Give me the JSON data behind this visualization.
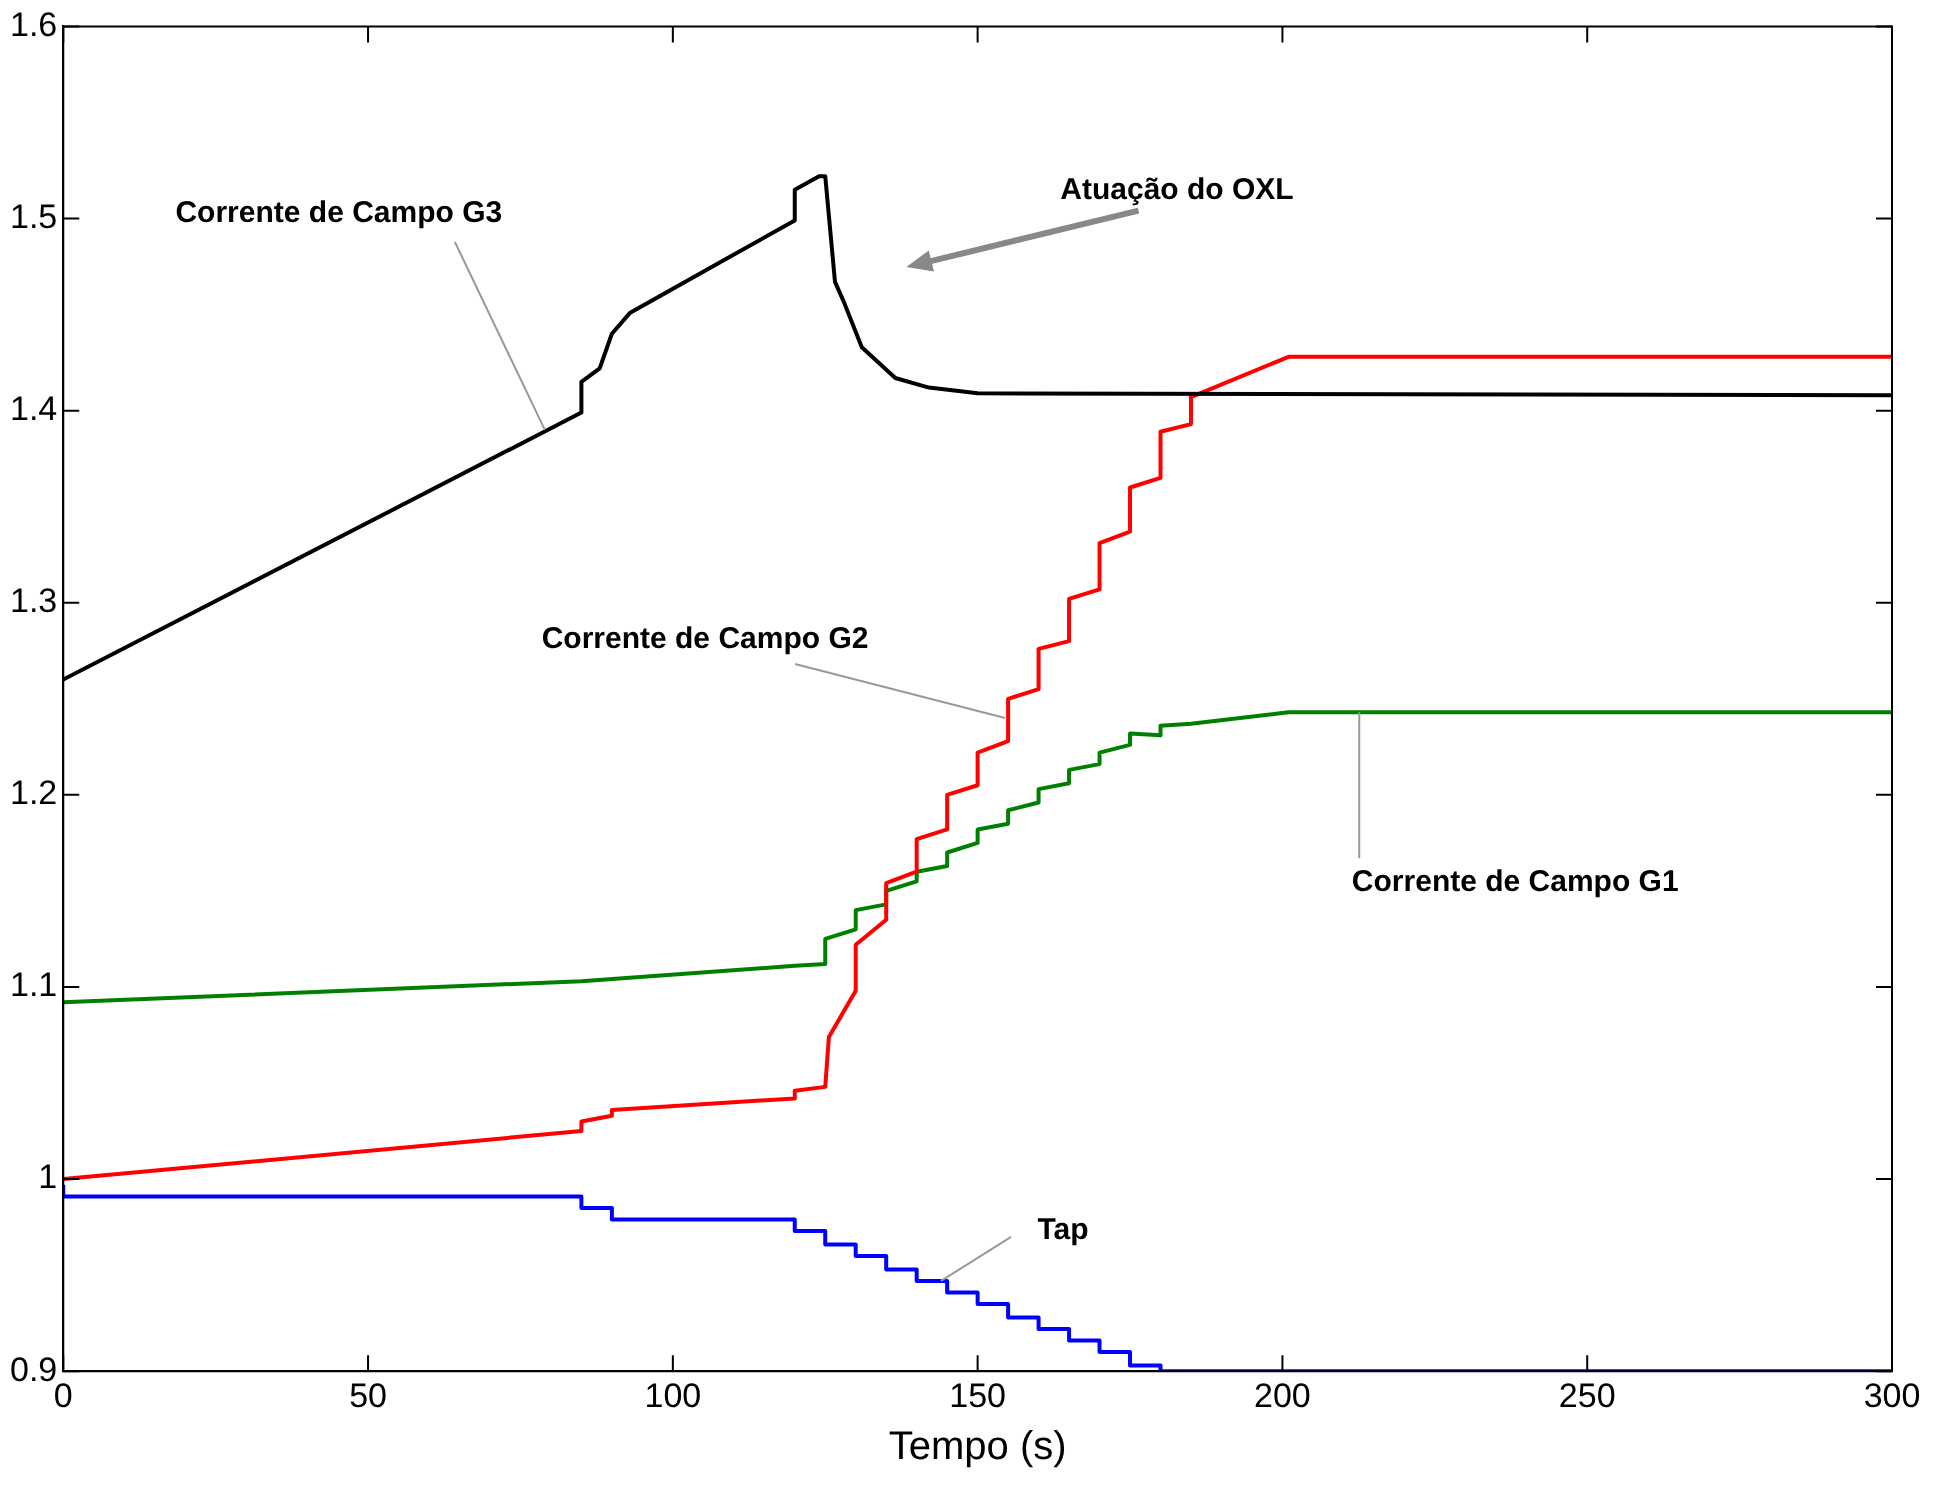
{
  "chart_data": {
    "type": "line",
    "xlabel": "Tempo (s)",
    "xlim": [
      0,
      300
    ],
    "xticks": [
      0,
      50,
      100,
      150,
      200,
      250,
      300
    ],
    "ylim": [
      0.9,
      1.6
    ],
    "yticks": [
      0.9,
      1,
      1.1,
      1.2,
      1.3,
      1.4,
      1.5,
      1.6
    ],
    "grid": false,
    "legend": false,
    "marker": "none",
    "line_style": "solid",
    "series": [
      {
        "color": "#000000",
        "x": [
          0,
          85,
          85,
          88,
          90,
          93,
          120,
          120,
          124,
          125,
          126.6,
          128,
          131,
          136.5,
          142,
          150,
          300
        ],
        "values": [
          1.26,
          1.399,
          1.415,
          1.422,
          1.44,
          1.451,
          1.499,
          1.515,
          1.522,
          1.522,
          1.467,
          1.457,
          1.433,
          1.417,
          1.412,
          1.409,
          1.408
        ]
      },
      {
        "color": "#ff0000",
        "x": [
          0,
          85,
          85,
          90,
          90,
          120,
          120,
          125,
          125.6,
          130,
          130,
          135,
          135,
          140,
          140,
          145,
          145,
          150,
          150,
          155,
          155,
          160,
          160,
          165,
          165,
          170,
          170,
          175,
          175,
          180,
          180,
          185,
          185,
          201,
          300
        ],
        "values": [
          1.0,
          1.025,
          1.03,
          1.033,
          1.036,
          1.042,
          1.046,
          1.048,
          1.074,
          1.098,
          1.122,
          1.135,
          1.154,
          1.16,
          1.177,
          1.182,
          1.2,
          1.205,
          1.222,
          1.228,
          1.25,
          1.255,
          1.276,
          1.28,
          1.302,
          1.307,
          1.331,
          1.337,
          1.36,
          1.365,
          1.389,
          1.393,
          1.407,
          1.428,
          1.428
        ]
      },
      {
        "color": "#008000",
        "x": [
          0,
          85,
          120,
          125,
          125,
          130,
          130,
          135,
          135,
          140,
          140,
          145,
          145,
          150,
          150,
          155,
          155,
          160,
          160,
          165,
          165,
          170,
          170,
          175,
          175,
          180,
          180,
          185,
          201,
          300
        ],
        "values": [
          1.092,
          1.103,
          1.111,
          1.112,
          1.125,
          1.13,
          1.14,
          1.143,
          1.15,
          1.155,
          1.16,
          1.163,
          1.17,
          1.175,
          1.182,
          1.185,
          1.192,
          1.196,
          1.203,
          1.206,
          1.213,
          1.216,
          1.222,
          1.226,
          1.232,
          1.231,
          1.236,
          1.237,
          1.243,
          1.243
        ]
      },
      {
        "type": "step",
        "color": "#0000ff",
        "x": [
          0,
          85,
          90,
          120,
          125,
          130,
          135,
          140,
          145,
          150,
          155,
          160,
          165,
          170,
          175,
          180,
          185,
          300
        ],
        "values": [
          0.997,
          0.991,
          0.985,
          0.979,
          0.973,
          0.966,
          0.96,
          0.953,
          0.947,
          0.941,
          0.935,
          0.928,
          0.922,
          0.916,
          0.91,
          0.903,
          0.9,
          0.9
        ]
      }
    ],
    "annotations": [
      {
        "text": "Corrente de Campo G3",
        "x": 79,
        "y": 1.39
      },
      {
        "text": "Corrente de Campo G2",
        "x": 154.5,
        "y": 1.24
      },
      {
        "text": "Corrente de Campo G1",
        "x": 212.6,
        "y": 1.243
      },
      {
        "text": "Tap",
        "x": 144,
        "y": 0.947
      },
      "Atuação do OXL"
    ]
  }
}
